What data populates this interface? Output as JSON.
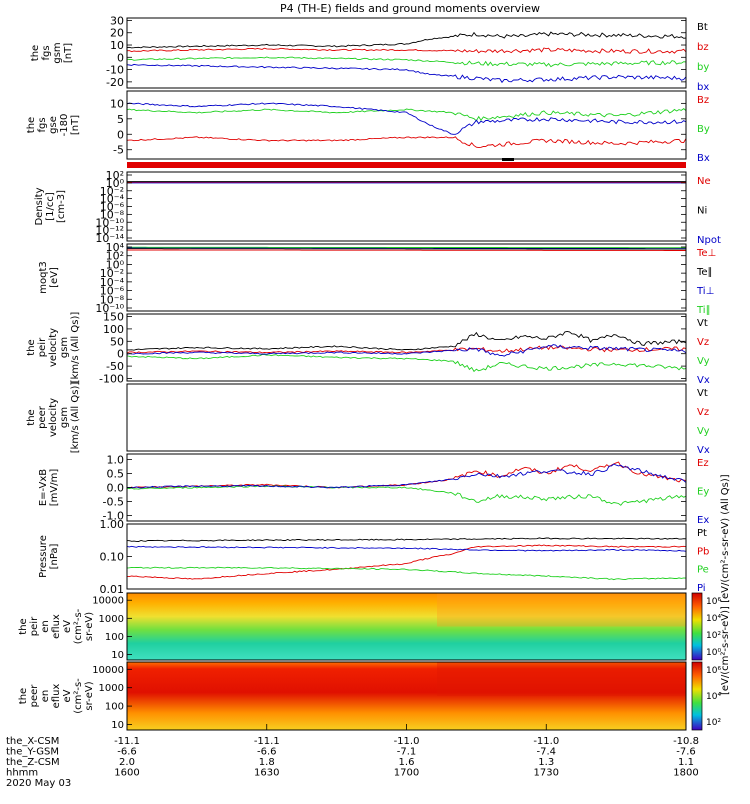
{
  "title": "P4 (TH-E) fields and ground moments overview",
  "colors": {
    "black": "#000000",
    "red": "#e00000",
    "green": "#20d020",
    "blue": "#0000c8"
  },
  "chart_data": [
    {
      "type": "line",
      "ylabel": [
        "the",
        "fgs",
        "gsm",
        "[nT]"
      ],
      "yticks": [
        "30",
        "20",
        "10",
        "0",
        "-10",
        "-20"
      ],
      "ylim": [
        -25,
        32
      ],
      "series": [
        {
          "name": "Bt",
          "color": "black",
          "x": [
            1600,
            1615,
            1630,
            1645,
            1700,
            1705,
            1715,
            1720,
            1725,
            1730,
            1745,
            1800
          ],
          "y": [
            8,
            9,
            10,
            9,
            11,
            15,
            19,
            17,
            17,
            19,
            18,
            17
          ]
        },
        {
          "name": "bz",
          "color": "red",
          "x": [
            1600,
            1615,
            1630,
            1645,
            1700,
            1715,
            1730,
            1745,
            1800
          ],
          "y": [
            5,
            6,
            7,
            6,
            6,
            5,
            6,
            5,
            5
          ]
        },
        {
          "name": "by",
          "color": "green",
          "x": [
            1600,
            1615,
            1630,
            1645,
            1700,
            1715,
            1730,
            1745,
            1800
          ],
          "y": [
            -2,
            -1,
            0,
            -1,
            -2,
            -5,
            -6,
            -5,
            -4
          ]
        },
        {
          "name": "bx",
          "color": "blue",
          "x": [
            1600,
            1615,
            1630,
            1645,
            1700,
            1705,
            1715,
            1720,
            1730,
            1745,
            1800
          ],
          "y": [
            -6,
            -7,
            -8,
            -9,
            -10,
            -14,
            -17,
            -19,
            -18,
            -16,
            -17
          ]
        }
      ]
    },
    {
      "type": "line",
      "ylabel": [
        "the",
        "fgs",
        "gse",
        "-180",
        "[nT]"
      ],
      "yticks": [
        "10",
        "5",
        "0",
        "-5"
      ],
      "ylim": [
        -8,
        14
      ],
      "series": [
        {
          "name": "Bz",
          "color": "red",
          "x": [
            1600,
            1615,
            1630,
            1645,
            1700,
            1710,
            1715,
            1730,
            1745,
            1800
          ],
          "y": [
            -2,
            -1,
            -2,
            -2,
            -1,
            -1,
            -4,
            -2,
            -3,
            -2
          ]
        },
        {
          "name": "By",
          "color": "green",
          "x": [
            1600,
            1615,
            1630,
            1645,
            1700,
            1710,
            1715,
            1730,
            1745,
            1800
          ],
          "y": [
            8,
            7,
            8,
            7,
            8,
            7,
            5,
            7,
            6,
            8
          ]
        },
        {
          "name": "Bx",
          "color": "blue",
          "x": [
            1600,
            1615,
            1630,
            1645,
            1700,
            1705,
            1710,
            1715,
            1730,
            1745,
            1800
          ],
          "y": [
            10,
            9,
            10,
            9,
            7,
            3,
            0,
            4,
            5,
            4,
            4
          ]
        }
      ]
    },
    {
      "type": "line",
      "ylabel": [
        "Density",
        "[1/cc]",
        "[cm-3]"
      ],
      "yticks": [
        "10²",
        "10⁰",
        "10⁻²",
        "10⁻⁴",
        "10⁻⁶",
        "10⁻⁸",
        "10⁻¹⁰",
        "10⁻¹²",
        "10⁻¹⁴"
      ],
      "ylim": [
        -14,
        2.5
      ],
      "series": [
        {
          "name": "Ne",
          "color": "red",
          "x": [
            1600,
            1800
          ],
          "y": [
            0,
            0
          ]
        },
        {
          "name": "Ni",
          "color": "black",
          "x": [
            1600,
            1800
          ],
          "y": [
            0.2,
            0.2
          ]
        },
        {
          "name": "Npot",
          "color": "blue",
          "x": [
            1600,
            1800
          ],
          "y": [
            -0.1,
            -0.1
          ]
        }
      ]
    },
    {
      "type": "line",
      "ylabel": [
        "moqt3",
        "[eV]"
      ],
      "yticks": [
        "10⁴",
        "10²",
        "10⁰",
        "10⁻²",
        "10⁻⁴",
        "10⁻⁶",
        "10⁻⁸",
        "10⁻¹⁰"
      ],
      "ylim": [
        -10,
        4.5
      ],
      "series": [
        {
          "name": "Te⊥",
          "color": "red",
          "x": [
            1600,
            1800
          ],
          "y": [
            3.2,
            3.1
          ]
        },
        {
          "name": "Te∥",
          "color": "black",
          "x": [
            1600,
            1800
          ],
          "y": [
            3.5,
            3.4
          ]
        },
        {
          "name": "Ti⊥",
          "color": "blue",
          "x": [
            1600,
            1800
          ],
          "y": [
            3.7,
            3.6
          ]
        },
        {
          "name": "Ti∥",
          "color": "green",
          "x": [
            1600,
            1800
          ],
          "y": [
            3.8,
            3.7
          ]
        }
      ]
    },
    {
      "type": "line",
      "ylabel": [
        "the",
        "peir",
        "velocity",
        "gsm",
        "[km/s (All Qs)]"
      ],
      "yticks": [
        "150",
        "100",
        "50",
        "0",
        "-50",
        "-100"
      ],
      "ylim": [
        -110,
        160
      ],
      "series": [
        {
          "name": "Vt",
          "color": "black",
          "x": [
            1600,
            1615,
            1630,
            1645,
            1700,
            1710,
            1715,
            1720,
            1725,
            1730,
            1735,
            1740,
            1745,
            1750,
            1800
          ],
          "y": [
            15,
            25,
            20,
            30,
            15,
            30,
            80,
            50,
            70,
            60,
            90,
            50,
            80,
            40,
            50
          ]
        },
        {
          "name": "Vz",
          "color": "red",
          "x": [
            1600,
            1615,
            1630,
            1645,
            1700,
            1715,
            1720,
            1730,
            1745,
            1800
          ],
          "y": [
            5,
            10,
            5,
            10,
            5,
            20,
            10,
            25,
            15,
            20
          ]
        },
        {
          "name": "Vy",
          "color": "green",
          "x": [
            1600,
            1615,
            1630,
            1645,
            1700,
            1710,
            1715,
            1720,
            1730,
            1745,
            1800
          ],
          "y": [
            -10,
            -20,
            -5,
            -15,
            -20,
            -30,
            -70,
            -40,
            -60,
            -40,
            -60
          ]
        },
        {
          "name": "Vx",
          "color": "blue",
          "x": [
            1600,
            1615,
            1630,
            1645,
            1700,
            1715,
            1720,
            1730,
            1745,
            1800
          ],
          "y": [
            0,
            5,
            0,
            5,
            0,
            20,
            -10,
            30,
            20,
            10
          ]
        }
      ]
    },
    {
      "type": "line",
      "ylabel": [
        "the",
        "peer",
        "velocity",
        "gsm",
        "[km/s (All Qs)]"
      ],
      "yticks": [],
      "ylim": [
        -100,
        100
      ],
      "series": [
        {
          "name": "Vt",
          "color": "black",
          "x": [],
          "y": []
        },
        {
          "name": "Vz",
          "color": "red",
          "x": [],
          "y": []
        },
        {
          "name": "Vy",
          "color": "green",
          "x": [],
          "y": []
        },
        {
          "name": "Vx",
          "color": "blue",
          "x": [],
          "y": []
        }
      ]
    },
    {
      "type": "line",
      "ylabel": [
        "E=-VxB",
        "[mV/m]"
      ],
      "yticks": [
        "1.0",
        "0.5",
        "0.0",
        "-0.5",
        "-1.0"
      ],
      "ylim": [
        -1.2,
        1.2
      ],
      "series": [
        {
          "name": "Ez",
          "color": "red",
          "x": [
            1600,
            1615,
            1630,
            1645,
            1700,
            1710,
            1715,
            1720,
            1725,
            1730,
            1735,
            1740,
            1745,
            1750,
            1800
          ],
          "y": [
            0,
            0.05,
            0.1,
            0,
            0.1,
            0.3,
            0.6,
            0.4,
            0.7,
            0.5,
            0.8,
            0.6,
            0.9,
            0.5,
            0.2
          ]
        },
        {
          "name": "Ey",
          "color": "green",
          "x": [
            1600,
            1615,
            1630,
            1645,
            1700,
            1710,
            1715,
            1720,
            1730,
            1740,
            1745,
            1800
          ],
          "y": [
            -0.05,
            0,
            0.05,
            0,
            0,
            -0.2,
            -0.5,
            -0.3,
            -0.4,
            -0.3,
            -0.6,
            -0.3
          ]
        },
        {
          "name": "Ex",
          "color": "blue",
          "x": [
            1600,
            1615,
            1630,
            1645,
            1700,
            1710,
            1715,
            1720,
            1730,
            1740,
            1745,
            1800
          ],
          "y": [
            0,
            0.05,
            0.05,
            0,
            0.1,
            0.3,
            0.5,
            0.4,
            0.6,
            0.5,
            0.8,
            0.2
          ]
        }
      ]
    },
    {
      "type": "line",
      "log_y": true,
      "ylabel": [
        "Pressure",
        "[nPa]"
      ],
      "yticks": [
        "1.00",
        "0.10",
        "0.01"
      ],
      "ylim": [
        0.01,
        1.0
      ],
      "series": [
        {
          "name": "Pt",
          "color": "black",
          "x": [
            1600,
            1630,
            1700,
            1730,
            1800
          ],
          "y": [
            0.3,
            0.32,
            0.33,
            0.36,
            0.35
          ]
        },
        {
          "name": "Pb",
          "color": "red",
          "x": [
            1600,
            1615,
            1630,
            1645,
            1700,
            1710,
            1715,
            1730,
            1745,
            1800
          ],
          "y": [
            0.025,
            0.02,
            0.03,
            0.04,
            0.06,
            0.12,
            0.2,
            0.22,
            0.2,
            0.2
          ]
        },
        {
          "name": "Pe",
          "color": "green",
          "x": [
            1600,
            1630,
            1700,
            1715,
            1730,
            1745,
            1800
          ],
          "y": [
            0.045,
            0.045,
            0.04,
            0.03,
            0.025,
            0.02,
            0.022
          ]
        },
        {
          "name": "Pi",
          "color": "blue",
          "x": [
            1600,
            1630,
            1700,
            1715,
            1730,
            1745,
            1800
          ],
          "y": [
            0.2,
            0.19,
            0.18,
            0.16,
            0.15,
            0.16,
            0.15
          ]
        }
      ]
    },
    {
      "type": "heatmap",
      "ylabel": [
        "the",
        "peir",
        "en",
        "eflux",
        "eV",
        "(cm²-s-",
        "sr-eV)"
      ],
      "yticks": [
        "10000",
        "1000",
        "100",
        "10"
      ],
      "ylim": [
        5,
        25000
      ],
      "colorbar_ticks": [
        "10⁶",
        "10⁴",
        "10²",
        "10⁰"
      ]
    },
    {
      "type": "heatmap",
      "ylabel": [
        "the",
        "peer",
        "en",
        "eflux",
        "eV",
        "(cm²-s-",
        "sr-eV)"
      ],
      "yticks": [
        "10000",
        "1000",
        "100",
        "10"
      ],
      "ylim": [
        5,
        25000
      ],
      "colorbar_ticks": [
        "10⁶",
        "10⁴",
        "10²"
      ]
    }
  ],
  "colorbar_label": "[eV/(cm²-s-sr-eV)] [eV/(cm²-s-sr-eV) (All Qs)]",
  "xaxis": {
    "rows": [
      {
        "label": "the_X-CSM",
        "values": [
          "-11.1",
          "-11.1",
          "-11.0",
          "-11.0",
          "-10.8"
        ]
      },
      {
        "label": "the_Y-GSM",
        "values": [
          "-6.6",
          "-6.6",
          "-7.1",
          "-7.4",
          "-7.6"
        ]
      },
      {
        "label": "the_Z-CSM",
        "values": [
          "2.0",
          "1.8",
          "1.6",
          "1.3",
          "1.1"
        ]
      },
      {
        "label": "hhmm",
        "values": [
          "1600",
          "1630",
          "1700",
          "1730",
          "1800"
        ]
      }
    ],
    "date": "2020 May 03",
    "xlim": [
      1600,
      1800
    ]
  }
}
